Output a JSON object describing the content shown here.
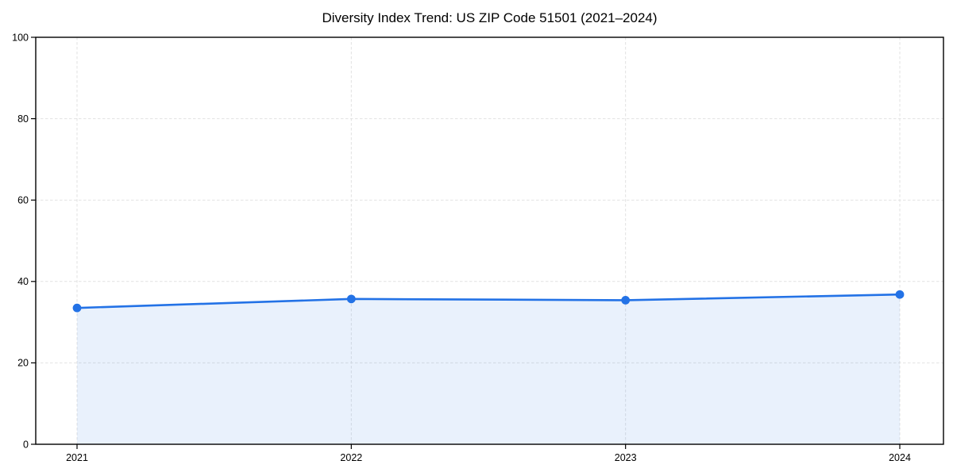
{
  "chart_data": {
    "type": "area",
    "title": "Diversity Index Trend: US ZIP Code 51501 (2021–2024)",
    "series_name": "Diversity Index",
    "categories": [
      "2021",
      "2022",
      "2023",
      "2024"
    ],
    "values": [
      33.5,
      35.7,
      35.4,
      36.8
    ],
    "xlabel": "",
    "ylabel": "",
    "ylim": [
      0,
      100
    ],
    "yticks": [
      0,
      20,
      40,
      60,
      80,
      100
    ],
    "grid": "dashed-both-axes",
    "legend": "none",
    "colors": {
      "line": "#2372e6",
      "marker": "#2372e6",
      "fill": "#2372e6",
      "fill_opacity": 0.1,
      "grid": "#e2e2e2",
      "axis": "#000000",
      "text": "#000000",
      "background": "#ffffff"
    }
  }
}
